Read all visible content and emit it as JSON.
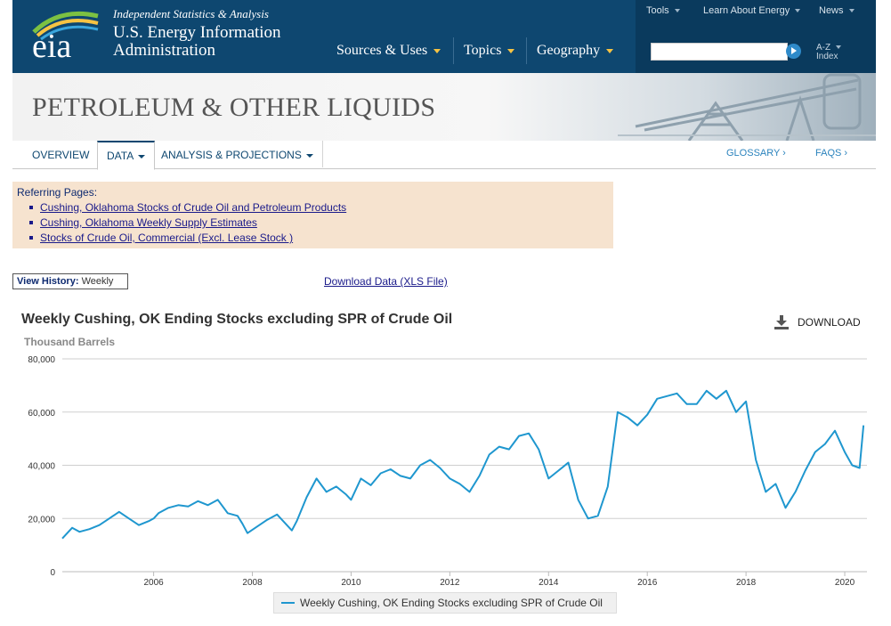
{
  "header": {
    "tagline": "Independent Statistics & Analysis",
    "org_line1": "U.S. Energy Information",
    "org_line2": "Administration",
    "nav": [
      "Sources & Uses",
      "Topics",
      "Geography"
    ],
    "util_nav": [
      "Tools",
      "Learn About Energy",
      "News"
    ],
    "search_value": "",
    "az_line1": "A-Z",
    "az_line2": "Index"
  },
  "banner": {
    "title": "PETROLEUM & OTHER LIQUIDS"
  },
  "tabs": {
    "items": [
      "OVERVIEW",
      "DATA",
      "ANALYSIS & PROJECTIONS"
    ],
    "active": "DATA",
    "right_links": [
      "GLOSSARY ›",
      "FAQS ›"
    ]
  },
  "referring": {
    "heading": "Referring Pages:",
    "links": [
      "Cushing, Oklahoma Stocks of Crude Oil and Petroleum Products",
      "Cushing, Oklahoma Weekly Supply Estimates",
      "Stocks of Crude Oil, Commercial (Excl. Lease Stock )"
    ]
  },
  "view_history": {
    "label": "View History:",
    "value": "Weekly"
  },
  "download_data": "Download Data (XLS File)",
  "download_button": "DOWNLOAD",
  "colors": {
    "header": "#0e4770",
    "accent": "#f6c343",
    "line": "#1f97cf"
  },
  "chart_data": {
    "type": "line",
    "title": "Weekly Cushing, OK Ending Stocks excluding SPR of Crude Oil",
    "ylabel": "Thousand Barrels",
    "ylim": [
      0,
      80000
    ],
    "yticks": [
      0,
      20000,
      40000,
      60000,
      80000
    ],
    "ytick_labels": [
      "0",
      "20,000",
      "40,000",
      "60,000",
      "80,000"
    ],
    "xlim": [
      2004.15,
      2020.45
    ],
    "xticks": [
      2006,
      2008,
      2010,
      2012,
      2014,
      2016,
      2018,
      2020
    ],
    "grid": "horizontal",
    "legend": "bottom-center",
    "series": [
      {
        "name": "Weekly Cushing, OK Ending Stocks excluding SPR of Crude Oil",
        "color": "#1f97cf",
        "x": [
          2004.15,
          2004.35,
          2004.5,
          2004.7,
          2004.9,
          2005.1,
          2005.3,
          2005.5,
          2005.7,
          2005.9,
          2006.0,
          2006.1,
          2006.3,
          2006.5,
          2006.7,
          2006.9,
          2007.1,
          2007.3,
          2007.5,
          2007.7,
          2007.8,
          2007.9,
          2008.1,
          2008.3,
          2008.5,
          2008.7,
          2008.8,
          2008.9,
          2009.1,
          2009.3,
          2009.5,
          2009.7,
          2009.9,
          2010.0,
          2010.2,
          2010.4,
          2010.6,
          2010.8,
          2011.0,
          2011.2,
          2011.4,
          2011.6,
          2011.8,
          2012.0,
          2012.2,
          2012.4,
          2012.6,
          2012.8,
          2013.0,
          2013.2,
          2013.4,
          2013.6,
          2013.8,
          2014.0,
          2014.2,
          2014.4,
          2014.6,
          2014.8,
          2015.0,
          2015.2,
          2015.4,
          2015.6,
          2015.8,
          2016.0,
          2016.2,
          2016.4,
          2016.6,
          2016.8,
          2017.0,
          2017.2,
          2017.4,
          2017.6,
          2017.8,
          2018.0,
          2018.2,
          2018.4,
          2018.6,
          2018.8,
          2019.0,
          2019.2,
          2019.4,
          2019.6,
          2019.8,
          2020.0,
          2020.15,
          2020.3,
          2020.38
        ],
        "values": [
          12500,
          16500,
          15000,
          16000,
          17500,
          20000,
          22500,
          20000,
          17500,
          19000,
          20000,
          22000,
          24000,
          25000,
          24500,
          26500,
          25000,
          27000,
          22000,
          21000,
          18000,
          14500,
          17000,
          19500,
          21500,
          17500,
          15500,
          19000,
          28000,
          35000,
          30000,
          32000,
          29000,
          27000,
          35000,
          32500,
          37000,
          38500,
          36000,
          35000,
          40000,
          42000,
          39000,
          35000,
          33000,
          30000,
          36000,
          44000,
          47000,
          46000,
          51000,
          52000,
          46000,
          35000,
          38000,
          41000,
          27000,
          20000,
          21000,
          32000,
          60000,
          58000,
          55000,
          59000,
          65000,
          66000,
          67000,
          63000,
          63000,
          68000,
          65000,
          68000,
          60000,
          64000,
          42000,
          30000,
          33000,
          24000,
          30000,
          38000,
          45000,
          48000,
          53000,
          45000,
          40000,
          39000,
          55000
        ]
      }
    ]
  }
}
